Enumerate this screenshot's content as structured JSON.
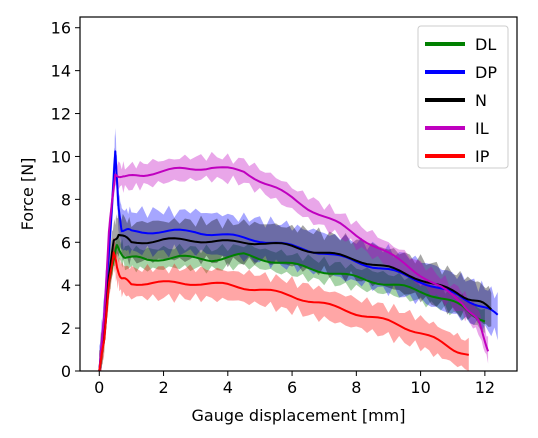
{
  "chart_data": {
    "type": "line",
    "xlabel": "Gauge displacement [mm]",
    "ylabel": "Force [N]",
    "xlim": [
      -0.6,
      13.0
    ],
    "ylim": [
      0,
      16.5
    ],
    "xticks": [
      0,
      2,
      4,
      6,
      8,
      10,
      12
    ],
    "yticks": [
      0,
      2,
      4,
      6,
      8,
      10,
      12,
      14,
      16
    ],
    "grid": false,
    "legend": "top-right",
    "series": [
      {
        "name": "DL",
        "color": "#008000",
        "band": 0.45,
        "x": [
          0,
          0.15,
          0.3,
          0.45,
          0.55,
          0.8,
          1.5,
          2.5,
          3.5,
          4.5,
          5.5,
          6.5,
          7.5,
          8.5,
          9.5,
          10.5,
          11.3,
          12.0
        ],
        "y": [
          0,
          1.5,
          4.0,
          5.3,
          5.8,
          5.3,
          5.2,
          5.3,
          5.2,
          5.4,
          5.1,
          4.8,
          4.5,
          4.2,
          3.9,
          3.5,
          3.0,
          2.3
        ]
      },
      {
        "name": "DP",
        "color": "#0000ff",
        "band": 0.9,
        "x": [
          0,
          0.15,
          0.3,
          0.45,
          0.5,
          0.6,
          0.7,
          1.0,
          2.0,
          3.0,
          4.0,
          5.0,
          6.0,
          7.0,
          8.0,
          9.0,
          10.0,
          11.0,
          11.8,
          12.4
        ],
        "y": [
          0,
          2.5,
          5.5,
          9.0,
          10.3,
          7.5,
          6.6,
          6.5,
          6.5,
          6.5,
          6.3,
          6.1,
          5.8,
          5.5,
          5.1,
          4.7,
          4.2,
          3.6,
          3.1,
          2.6
        ]
      },
      {
        "name": "N",
        "color": "#000000",
        "band": 0.85,
        "x": [
          0,
          0.15,
          0.3,
          0.45,
          0.6,
          1.0,
          2.0,
          3.0,
          4.0,
          5.0,
          6.0,
          7.0,
          8.0,
          9.0,
          10.0,
          11.0,
          11.7,
          12.2
        ],
        "y": [
          0,
          2.0,
          4.5,
          6.0,
          6.4,
          6.0,
          6.1,
          6.1,
          6.0,
          6.0,
          5.8,
          5.5,
          5.2,
          4.8,
          4.3,
          3.7,
          3.3,
          2.9
        ]
      },
      {
        "name": "IL",
        "color": "#bf00bf",
        "band": 0.5,
        "x": [
          0,
          0.15,
          0.3,
          0.5,
          0.8,
          1.5,
          2.5,
          3.5,
          4.5,
          5.5,
          6.5,
          7.5,
          8.5,
          9.5,
          10.5,
          11.3,
          11.8,
          12.1
        ],
        "y": [
          0,
          2.5,
          6.5,
          9.2,
          9.0,
          9.2,
          9.4,
          9.5,
          9.3,
          8.5,
          7.6,
          6.8,
          5.9,
          5.0,
          4.0,
          3.2,
          2.3,
          1.0
        ]
      },
      {
        "name": "IP",
        "color": "#ff0000",
        "band": 0.65,
        "x": [
          0,
          0.15,
          0.3,
          0.45,
          0.55,
          0.7,
          1.0,
          2.0,
          3.0,
          4.0,
          5.0,
          6.0,
          7.0,
          8.0,
          9.0,
          10.0,
          10.8,
          11.5
        ],
        "y": [
          0,
          1.5,
          4.0,
          5.6,
          4.8,
          4.3,
          4.1,
          4.1,
          4.1,
          4.0,
          3.8,
          3.5,
          3.1,
          2.7,
          2.3,
          1.8,
          1.2,
          0.7
        ]
      }
    ]
  }
}
